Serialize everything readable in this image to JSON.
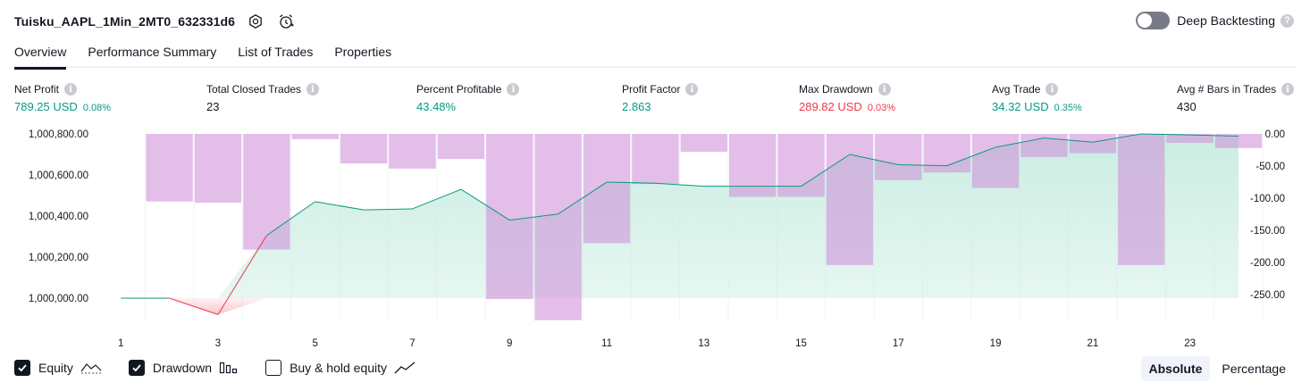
{
  "header": {
    "strategy_name": "Tuisku_AAPL_1Min_2MT0_632331d6",
    "icons": [
      "settings-icon",
      "add-alert-icon"
    ]
  },
  "deep_backtesting": {
    "label": "Deep Backtesting",
    "enabled": false,
    "help": "?"
  },
  "tabs": [
    {
      "label": "Overview",
      "active": true
    },
    {
      "label": "Performance Summary",
      "active": false
    },
    {
      "label": "List of Trades",
      "active": false
    },
    {
      "label": "Properties",
      "active": false
    }
  ],
  "metrics": [
    {
      "label": "Net Profit",
      "value": "789.25 USD",
      "pct": "0.08%",
      "tone": "pos"
    },
    {
      "label": "Total Closed Trades",
      "value": "23",
      "pct": "",
      "tone": "neutral"
    },
    {
      "label": "Percent Profitable",
      "value": "43.48%",
      "pct": "",
      "tone": "pos"
    },
    {
      "label": "Profit Factor",
      "value": "2.863",
      "pct": "",
      "tone": "pos"
    },
    {
      "label": "Max Drawdown",
      "value": "289.82 USD",
      "pct": "0.03%",
      "tone": "neg"
    },
    {
      "label": "Avg Trade",
      "value": "34.32 USD",
      "pct": "0.35%",
      "tone": "pos"
    },
    {
      "label": "Avg # Bars in Trades",
      "value": "430",
      "pct": "",
      "tone": "neutral"
    }
  ],
  "info_glyph": "i",
  "chart_data": {
    "type": "line",
    "title": "",
    "x": [
      1,
      2,
      3,
      4,
      5,
      6,
      7,
      8,
      9,
      10,
      11,
      12,
      13,
      14,
      15,
      16,
      17,
      18,
      19,
      20,
      21,
      22,
      23,
      24
    ],
    "xticks": [
      "1",
      "3",
      "5",
      "7",
      "9",
      "11",
      "13",
      "15",
      "17",
      "19",
      "21",
      "23"
    ],
    "yticks_left": [
      "1,000,800.00",
      "1,000,600.00",
      "1,000,400.00",
      "1,000,200.00",
      "1,000,000.00"
    ],
    "yticks_right": [
      "0.00",
      "-50.00",
      "-100.00",
      "-150.00",
      "-200.00",
      "-250.00"
    ],
    "ylim_left": [
      999920,
      1000800
    ],
    "ylim_right": [
      -287.5,
      0
    ],
    "baseline": 1000000,
    "series": [
      {
        "name": "Equity",
        "axis": "left",
        "values": [
          1000000,
          1000000,
          999920,
          1000305,
          1000470,
          1000430,
          1000435,
          1000530,
          1000380,
          1000410,
          1000565,
          1000560,
          1000545,
          1000545,
          1000545,
          1000700,
          1000650,
          1000645,
          1000735,
          1000780,
          1000760,
          1000800,
          1000795,
          1000789
        ]
      },
      {
        "name": "Drawdown",
        "axis": "right",
        "values": [
          0,
          -105,
          -107,
          -180,
          -8,
          -46,
          -54,
          -39,
          -257,
          -289.82,
          -170,
          -78,
          -28,
          -98,
          -98,
          -204,
          -72,
          -60,
          -84,
          -36,
          -30,
          -204,
          -14,
          -22
        ]
      }
    ],
    "colors": {
      "equity_line": "#089981",
      "equity_fill": "#c8ece1",
      "underwater_line": "#f23645",
      "underwater_fill": "#f7c0c5",
      "drawdown_bar": "#ce93d8",
      "grid": "#f0f3fa"
    }
  },
  "legend": [
    {
      "label": "Equity",
      "checked": true,
      "icon": "equity-line-icon"
    },
    {
      "label": "Drawdown",
      "checked": true,
      "icon": "drawdown-bars-icon"
    },
    {
      "label": "Buy & hold equity",
      "checked": false,
      "icon": "buy-hold-line-icon"
    }
  ],
  "modes": [
    {
      "label": "Absolute",
      "active": true
    },
    {
      "label": "Percentage",
      "active": false
    }
  ]
}
